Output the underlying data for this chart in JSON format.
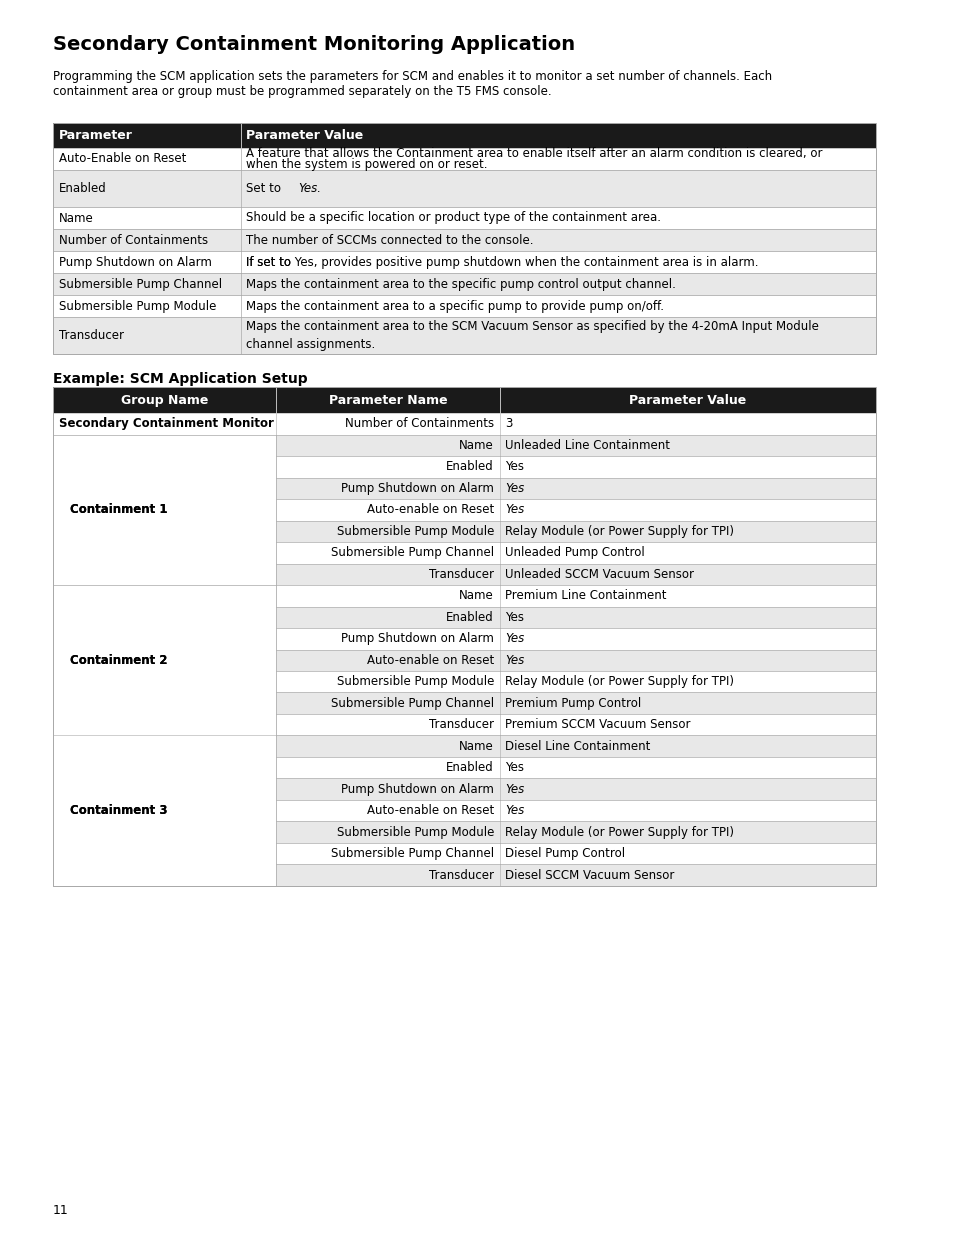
{
  "title": "Secondary Containment Monitoring Application",
  "intro": "Programming the SCM application sets the parameters for SCM and enables it to monitor a set number of channels. Each\ncontainment area or group must be programmed separately on the T5 FMS console.",
  "example_heading": "Example: SCM Application Setup",
  "page_number": "11",
  "table1_header": [
    "Parameter",
    "Parameter Value"
  ],
  "table1_rows": [
    [
      "white",
      "Auto-Enable on Reset",
      "A feature that allows the Containment area to enable itself after an alarm condition is cleared, or\nwhen the system is powered on or reset."
    ],
    [
      "gray",
      "Enabled",
      "Set to Yes."
    ],
    [
      "white",
      "Name",
      "Should be a specific location or product type of the containment area."
    ],
    [
      "gray",
      "Number of Containments",
      "The number of SCCMs connected to the console."
    ],
    [
      "white",
      "Pump Shutdown on Alarm",
      "If set to Yes, provides positive pump shutdown when the containment area is in alarm."
    ],
    [
      "gray",
      "Submersible Pump Channel",
      "Maps the containment area to the specific pump control output channel."
    ],
    [
      "white",
      "Submersible Pump Module",
      "Maps the containment area to a specific pump to provide pump on/off."
    ],
    [
      "gray",
      "Transducer",
      "Maps the containment area to the SCM Vacuum Sensor as specified by the 4-20mA Input Module\nchannel assignments."
    ]
  ],
  "table2_header": [
    "Group Name",
    "Parameter Name",
    "Parameter Value"
  ],
  "table2_rows": [
    {
      "level": 0,
      "group": "Secondary Containment Monitor",
      "param": "Number of Containments",
      "value": "3",
      "bg": "white",
      "bold_group": true,
      "bold_value": false,
      "italic_value": false
    },
    {
      "level": 1,
      "group": "Containment 1",
      "param": "Name",
      "value": "Unleaded Line Containment",
      "bg": "gray",
      "bold_group": true,
      "bold_value": false,
      "italic_value": false
    },
    {
      "level": 1,
      "group": "",
      "param": "Enabled",
      "value": "Yes",
      "bg": "white",
      "bold_group": false,
      "bold_value": false,
      "italic_value": false
    },
    {
      "level": 1,
      "group": "",
      "param": "Pump Shutdown on Alarm",
      "value": "Yes",
      "bg": "gray",
      "bold_group": false,
      "bold_value": false,
      "italic_value": true
    },
    {
      "level": 1,
      "group": "",
      "param": "Auto-enable on Reset",
      "value": "Yes",
      "bg": "white",
      "bold_group": false,
      "bold_value": false,
      "italic_value": true
    },
    {
      "level": 1,
      "group": "",
      "param": "Submersible Pump Module",
      "value": "Relay Module (or Power Supply for TPI)",
      "bg": "gray",
      "bold_group": false,
      "bold_value": false,
      "italic_value": false
    },
    {
      "level": 1,
      "group": "",
      "param": "Submersible Pump Channel",
      "value": "Unleaded Pump Control",
      "bg": "white",
      "bold_group": false,
      "bold_value": false,
      "italic_value": false
    },
    {
      "level": 1,
      "group": "",
      "param": "Transducer",
      "value": "Unleaded SCCM Vacuum Sensor",
      "bg": "gray",
      "bold_group": false,
      "bold_value": false,
      "italic_value": false
    },
    {
      "level": 1,
      "group": "Containment 2",
      "param": "Name",
      "value": "Premium Line Containment",
      "bg": "white",
      "bold_group": true,
      "bold_value": false,
      "italic_value": false
    },
    {
      "level": 1,
      "group": "",
      "param": "Enabled",
      "value": "Yes",
      "bg": "gray",
      "bold_group": false,
      "bold_value": false,
      "italic_value": false
    },
    {
      "level": 1,
      "group": "",
      "param": "Pump Shutdown on Alarm",
      "value": "Yes",
      "bg": "white",
      "bold_group": false,
      "bold_value": false,
      "italic_value": true
    },
    {
      "level": 1,
      "group": "",
      "param": "Auto-enable on Reset",
      "value": "Yes",
      "bg": "gray",
      "bold_group": false,
      "bold_value": false,
      "italic_value": true
    },
    {
      "level": 1,
      "group": "",
      "param": "Submersible Pump Module",
      "value": "Relay Module (or Power Supply for TPI)",
      "bg": "white",
      "bold_group": false,
      "bold_value": false,
      "italic_value": false
    },
    {
      "level": 1,
      "group": "",
      "param": "Submersible Pump Channel",
      "value": "Premium Pump Control",
      "bg": "gray",
      "bold_group": false,
      "bold_value": false,
      "italic_value": false
    },
    {
      "level": 1,
      "group": "",
      "param": "Transducer",
      "value": "Premium SCCM Vacuum Sensor",
      "bg": "white",
      "bold_group": false,
      "bold_value": false,
      "italic_value": false
    },
    {
      "level": 1,
      "group": "Containment 3",
      "param": "Name",
      "value": "Diesel Line Containment",
      "bg": "gray",
      "bold_group": true,
      "bold_value": false,
      "italic_value": false
    },
    {
      "level": 1,
      "group": "",
      "param": "Enabled",
      "value": "Yes",
      "bg": "white",
      "bold_group": false,
      "bold_value": false,
      "italic_value": false
    },
    {
      "level": 1,
      "group": "",
      "param": "Pump Shutdown on Alarm",
      "value": "Yes",
      "bg": "gray",
      "bold_group": false,
      "bold_value": false,
      "italic_value": true
    },
    {
      "level": 1,
      "group": "",
      "param": "Auto-enable on Reset",
      "value": "Yes",
      "bg": "white",
      "bold_group": false,
      "bold_value": false,
      "italic_value": true
    },
    {
      "level": 1,
      "group": "",
      "param": "Submersible Pump Module",
      "value": "Relay Module (or Power Supply for TPI)",
      "bg": "gray",
      "bold_group": false,
      "bold_value": false,
      "italic_value": false
    },
    {
      "level": 1,
      "group": "",
      "param": "Submersible Pump Channel",
      "value": "Diesel Pump Control",
      "bg": "white",
      "bold_group": false,
      "bold_value": false,
      "italic_value": false
    },
    {
      "level": 1,
      "group": "",
      "param": "Transducer",
      "value": "Diesel SCCM Vacuum Sensor",
      "bg": "gray",
      "bold_group": false,
      "bold_value": false,
      "italic_value": false
    }
  ],
  "header_bg": "#1a1a1a",
  "header_fg": "#ffffff",
  "gray_bg": "#e8e8e8",
  "white_bg": "#ffffff",
  "border_color": "#aaaaaa",
  "font_size": 8.5,
  "header_font_size": 9
}
